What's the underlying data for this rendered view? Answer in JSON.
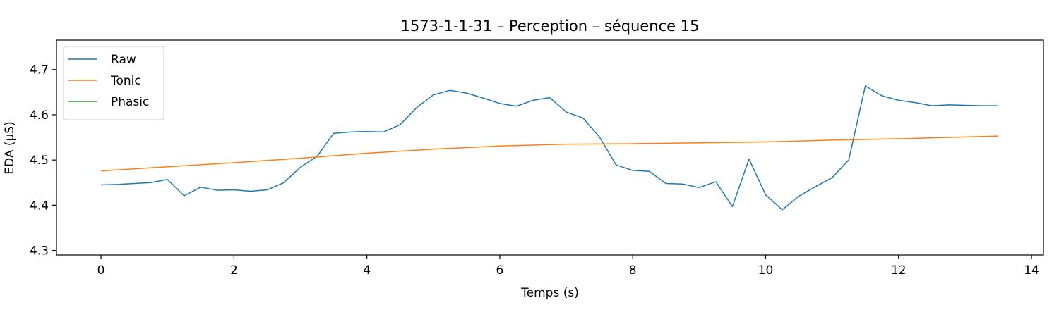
{
  "chart_data": {
    "type": "line",
    "title": "1573-1-1-31 – Perception – séquence 15",
    "xlabel": "Temps (s)",
    "ylabel": "EDA (µS)",
    "xlim": [
      -0.67,
      14.18
    ],
    "ylim": [
      4.29,
      4.765
    ],
    "xticks": [
      0,
      2,
      4,
      6,
      8,
      10,
      12,
      14
    ],
    "xtick_labels": [
      "0",
      "2",
      "4",
      "6",
      "8",
      "10",
      "12",
      "14"
    ],
    "yticks": [
      4.3,
      4.4,
      4.5,
      4.6,
      4.7
    ],
    "ytick_labels": [
      "4.3",
      "4.4",
      "4.5",
      "4.6",
      "4.7"
    ],
    "grid": false,
    "legend_position": "top-left",
    "series": [
      {
        "name": "Raw",
        "color": "#1f77b4",
        "x": [
          0,
          0.25,
          0.5,
          0.75,
          1.0,
          1.25,
          1.5,
          1.75,
          2.0,
          2.25,
          2.5,
          2.75,
          3.0,
          3.25,
          3.5,
          3.75,
          4.0,
          4.25,
          4.5,
          4.75,
          5.0,
          5.25,
          5.5,
          5.75,
          6.0,
          6.25,
          6.5,
          6.75,
          7.0,
          7.25,
          7.5,
          7.75,
          8.0,
          8.25,
          8.5,
          8.75,
          9.0,
          9.25,
          9.5,
          9.75,
          10.0,
          10.25,
          10.5,
          10.75,
          11.0,
          11.25,
          11.5,
          11.75,
          12.0,
          12.25,
          12.5,
          12.75,
          13.0,
          13.25,
          13.5
        ],
        "y": [
          4.445,
          4.446,
          4.448,
          4.45,
          4.457,
          4.421,
          4.44,
          4.433,
          4.434,
          4.431,
          4.434,
          4.45,
          4.484,
          4.508,
          4.559,
          4.562,
          4.563,
          4.562,
          4.578,
          4.616,
          4.644,
          4.654,
          4.648,
          4.637,
          4.625,
          4.619,
          4.632,
          4.638,
          4.606,
          4.593,
          4.551,
          4.489,
          4.477,
          4.475,
          4.448,
          4.447,
          4.439,
          4.452,
          4.397,
          4.502,
          4.423,
          4.39,
          4.42,
          4.441,
          4.461,
          4.5,
          4.664,
          4.642,
          4.632,
          4.627,
          4.62,
          4.622,
          4.621,
          4.62,
          4.62
        ]
      },
      {
        "name": "Tonic",
        "color": "#ff7f0e",
        "x": [
          0,
          1,
          2,
          3,
          4,
          5,
          6,
          7,
          8,
          9,
          10,
          11,
          12,
          13,
          13.5
        ],
        "y": [
          4.476,
          4.485,
          4.494,
          4.504,
          4.515,
          4.524,
          4.531,
          4.535,
          4.536,
          4.538,
          4.54,
          4.544,
          4.547,
          4.551,
          4.553
        ]
      },
      {
        "name": "Phasic",
        "color": "#2ca02c",
        "x": [],
        "y": []
      }
    ]
  }
}
